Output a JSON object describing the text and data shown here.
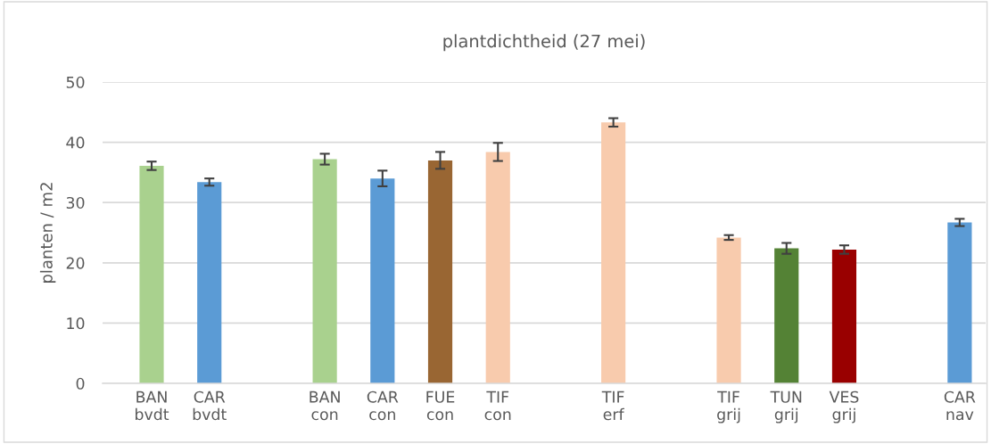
{
  "chart_data": {
    "type": "bar",
    "title": "plantdichtheid (27 mei)",
    "ylabel": "planten / m2",
    "categories": [
      "BAN\nbvdt",
      "CAR\nbvdt",
      null,
      "BAN\ncon",
      "CAR\ncon",
      "FUE\ncon",
      "TIF\ncon",
      null,
      "TIF\nerf",
      null,
      "TIF\ngrij",
      "TUN\ngrij",
      "VES\ngrij",
      null,
      "CAR\nnav"
    ],
    "values": [
      36.1,
      33.4,
      null,
      37.2,
      34.0,
      37.0,
      38.4,
      null,
      43.3,
      null,
      24.2,
      22.4,
      22.2,
      null,
      26.7
    ],
    "errors": [
      0.7,
      0.6,
      null,
      0.9,
      1.3,
      1.4,
      1.5,
      null,
      0.7,
      null,
      0.4,
      0.9,
      0.7,
      null,
      0.6
    ],
    "colors": [
      "#a9d18e",
      "#5b9bd5",
      null,
      "#a9d18e",
      "#5b9bd5",
      "#996633",
      "#f8cbad",
      null,
      "#f8cbad",
      null,
      "#f8cbad",
      "#548235",
      "#990000",
      null,
      "#5b9bd5"
    ],
    "ylim": [
      0,
      50
    ],
    "yticks": [
      0,
      10,
      20,
      30,
      40,
      50
    ],
    "grid": "y",
    "legend": false
  }
}
